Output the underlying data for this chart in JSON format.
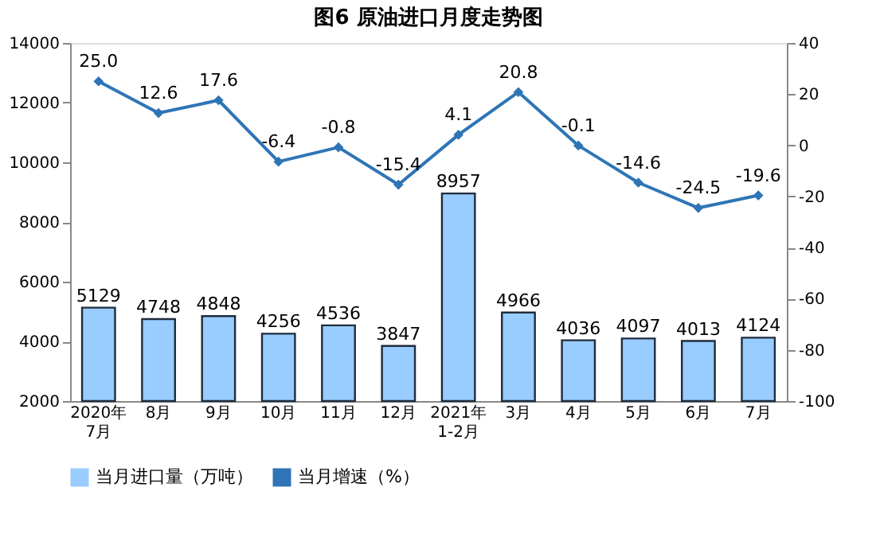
{
  "chart_data": {
    "type": "bar",
    "title": "图6 原油进口月度走势图",
    "categories": [
      "2020年\n7月",
      "8月",
      "9月",
      "10月",
      "11月",
      "12月",
      "2021年\n1-2月",
      "3月",
      "4月",
      "5月",
      "6月",
      "7月"
    ],
    "series": [
      {
        "name": "当月进口量（万吨）",
        "color": "#99ccff",
        "values": [
          5129,
          4748,
          4848,
          4256,
          4536,
          3847,
          8957,
          4966,
          4036,
          4097,
          4013,
          4124
        ]
      },
      {
        "name": "当月增速（%）",
        "type": "line",
        "axis": "y2",
        "color": "#2e75b6",
        "marker": "diamond",
        "values": [
          25.0,
          12.6,
          17.6,
          -6.4,
          -0.8,
          -15.4,
          4.1,
          20.8,
          -0.1,
          -14.6,
          -24.5,
          -19.6
        ],
        "value_labels": [
          "25.0",
          "12.6",
          "17.6",
          "-6.4",
          "-0.8",
          "-15.4",
          "4.1",
          "20.8",
          "-0.1",
          "-14.6",
          "-24.5",
          "-19.6"
        ]
      }
    ],
    "ylim": [
      2000,
      14000
    ],
    "yticks": [
      2000,
      4000,
      6000,
      8000,
      10000,
      12000,
      14000
    ],
    "y2lim": [
      -100,
      40
    ],
    "y2ticks": [
      -100,
      -80,
      -60,
      -40,
      -20,
      0,
      20,
      40
    ],
    "data_labels": true,
    "legend": "bottom",
    "grid": false
  }
}
